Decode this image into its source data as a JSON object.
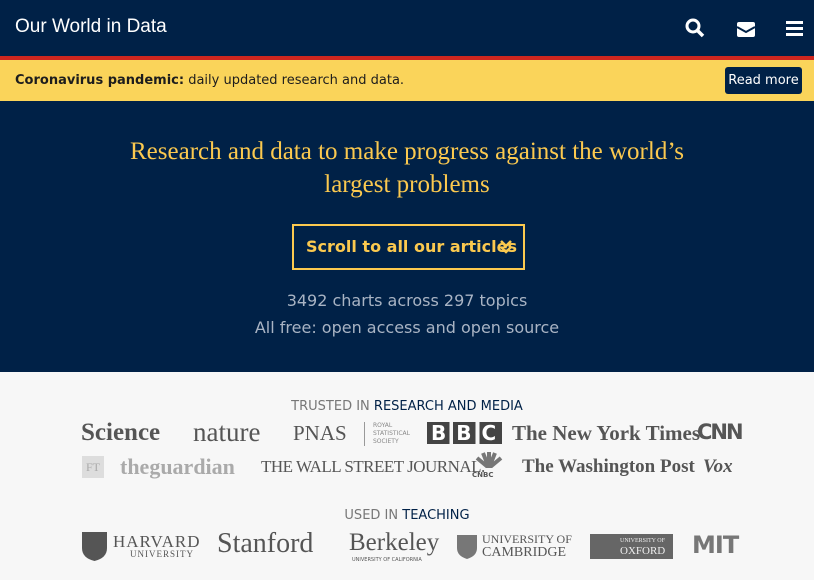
{
  "header": {
    "logo": "Our World in Data"
  },
  "banner": {
    "title": "Coronavirus pandemic:",
    "text": "daily updated research and data.",
    "button": "Read more"
  },
  "hero": {
    "title": "Research and data to make progress against the world’s largest problems",
    "button": "Scroll to all our articles",
    "stats": "3492 charts across 297 topics",
    "tagline": "All free: open access and open source"
  },
  "trusted": {
    "prefix": "TRUSTED IN",
    "highlight": "RESEARCH AND MEDIA",
    "logos": [
      "Science",
      "nature",
      "PNAS",
      "ROYAL STATISTICAL SOCIETY",
      "BBC",
      "The New York Times",
      "CNN",
      "FT",
      "theguardian",
      "THE WALL STREET JOURNAL.",
      "CNBC",
      "The Washington Post",
      "Vox"
    ]
  },
  "teaching": {
    "prefix": "USED IN",
    "highlight": "TEACHING",
    "logos": [
      "HARVARD",
      "UNIVERSITY",
      "Stanford",
      "Berkeley",
      "UNIVERSITY OF CALIFORNIA",
      "UNIVERSITY OF",
      "CAMBRIDGE",
      "UNIVERSITY OF",
      "OXFORD",
      "MIT"
    ]
  }
}
